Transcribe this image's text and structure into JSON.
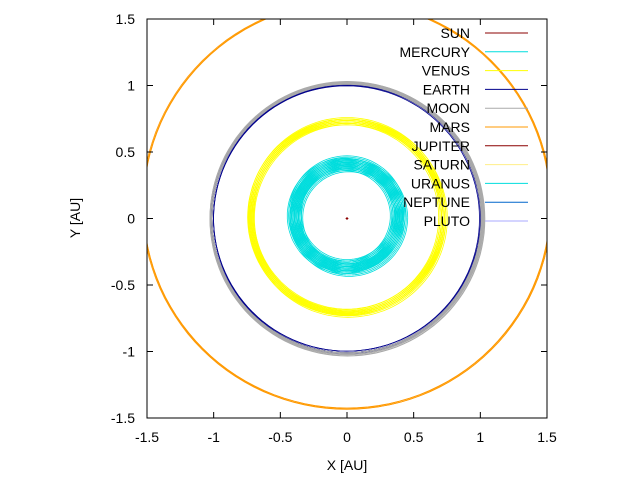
{
  "chart_data": {
    "type": "line",
    "xlabel": "X [AU]",
    "ylabel": "Y [AU]",
    "xlim": [
      -1.5,
      1.5
    ],
    "ylim": [
      -1.5,
      1.5
    ],
    "xticks": [
      "-1.5",
      "-1",
      "-0.5",
      "0",
      "0.5",
      "1",
      "1.5"
    ],
    "yticks": [
      "-1.5",
      "-1",
      "-0.5",
      "0",
      "0.5",
      "1",
      "1.5"
    ],
    "grid": false,
    "legend_position": "top-right",
    "series": [
      {
        "name": "SUN",
        "color": "#8b0000",
        "center": [
          0.0,
          0.0
        ],
        "radius": 0.005,
        "spread": 0.0
      },
      {
        "name": "MERCURY",
        "color": "#00dddd",
        "center": [
          0.0,
          0.02
        ],
        "radius": 0.39,
        "spread": 0.1
      },
      {
        "name": "VENUS",
        "color": "#ffff00",
        "center": [
          0.0,
          0.01
        ],
        "radius": 0.72,
        "spread": 0.05
      },
      {
        "name": "EARTH",
        "color": "#00008b",
        "center": [
          0.0,
          0.0
        ],
        "radius": 1.01,
        "spread": 0.025
      },
      {
        "name": "MOON",
        "color": "#aaaaaa",
        "center": [
          0.0,
          0.0
        ],
        "radius": 1.02,
        "spread": 0.02
      },
      {
        "name": "MARS",
        "color": "#ff9900",
        "center": [
          0.0,
          0.1
        ],
        "radius": 1.53,
        "spread": 0.01
      },
      {
        "name": "JUPITER",
        "color": "#8b0000",
        "center": [
          0.0,
          0.0
        ],
        "radius": null,
        "spread": 0.0
      },
      {
        "name": "SATURN",
        "color": "#ffee88",
        "center": [
          0.0,
          0.0
        ],
        "radius": null,
        "spread": 0.0
      },
      {
        "name": "URANUS",
        "color": "#00dddd",
        "center": [
          0.0,
          0.0
        ],
        "radius": null,
        "spread": 0.0
      },
      {
        "name": "NEPTUNE",
        "color": "#0066cc",
        "center": [
          0.0,
          0.0
        ],
        "radius": null,
        "spread": 0.0
      },
      {
        "name": "PLUTO",
        "color": "#aaaaff",
        "center": [
          0.0,
          0.0
        ],
        "radius": null,
        "spread": 0.0
      }
    ]
  }
}
